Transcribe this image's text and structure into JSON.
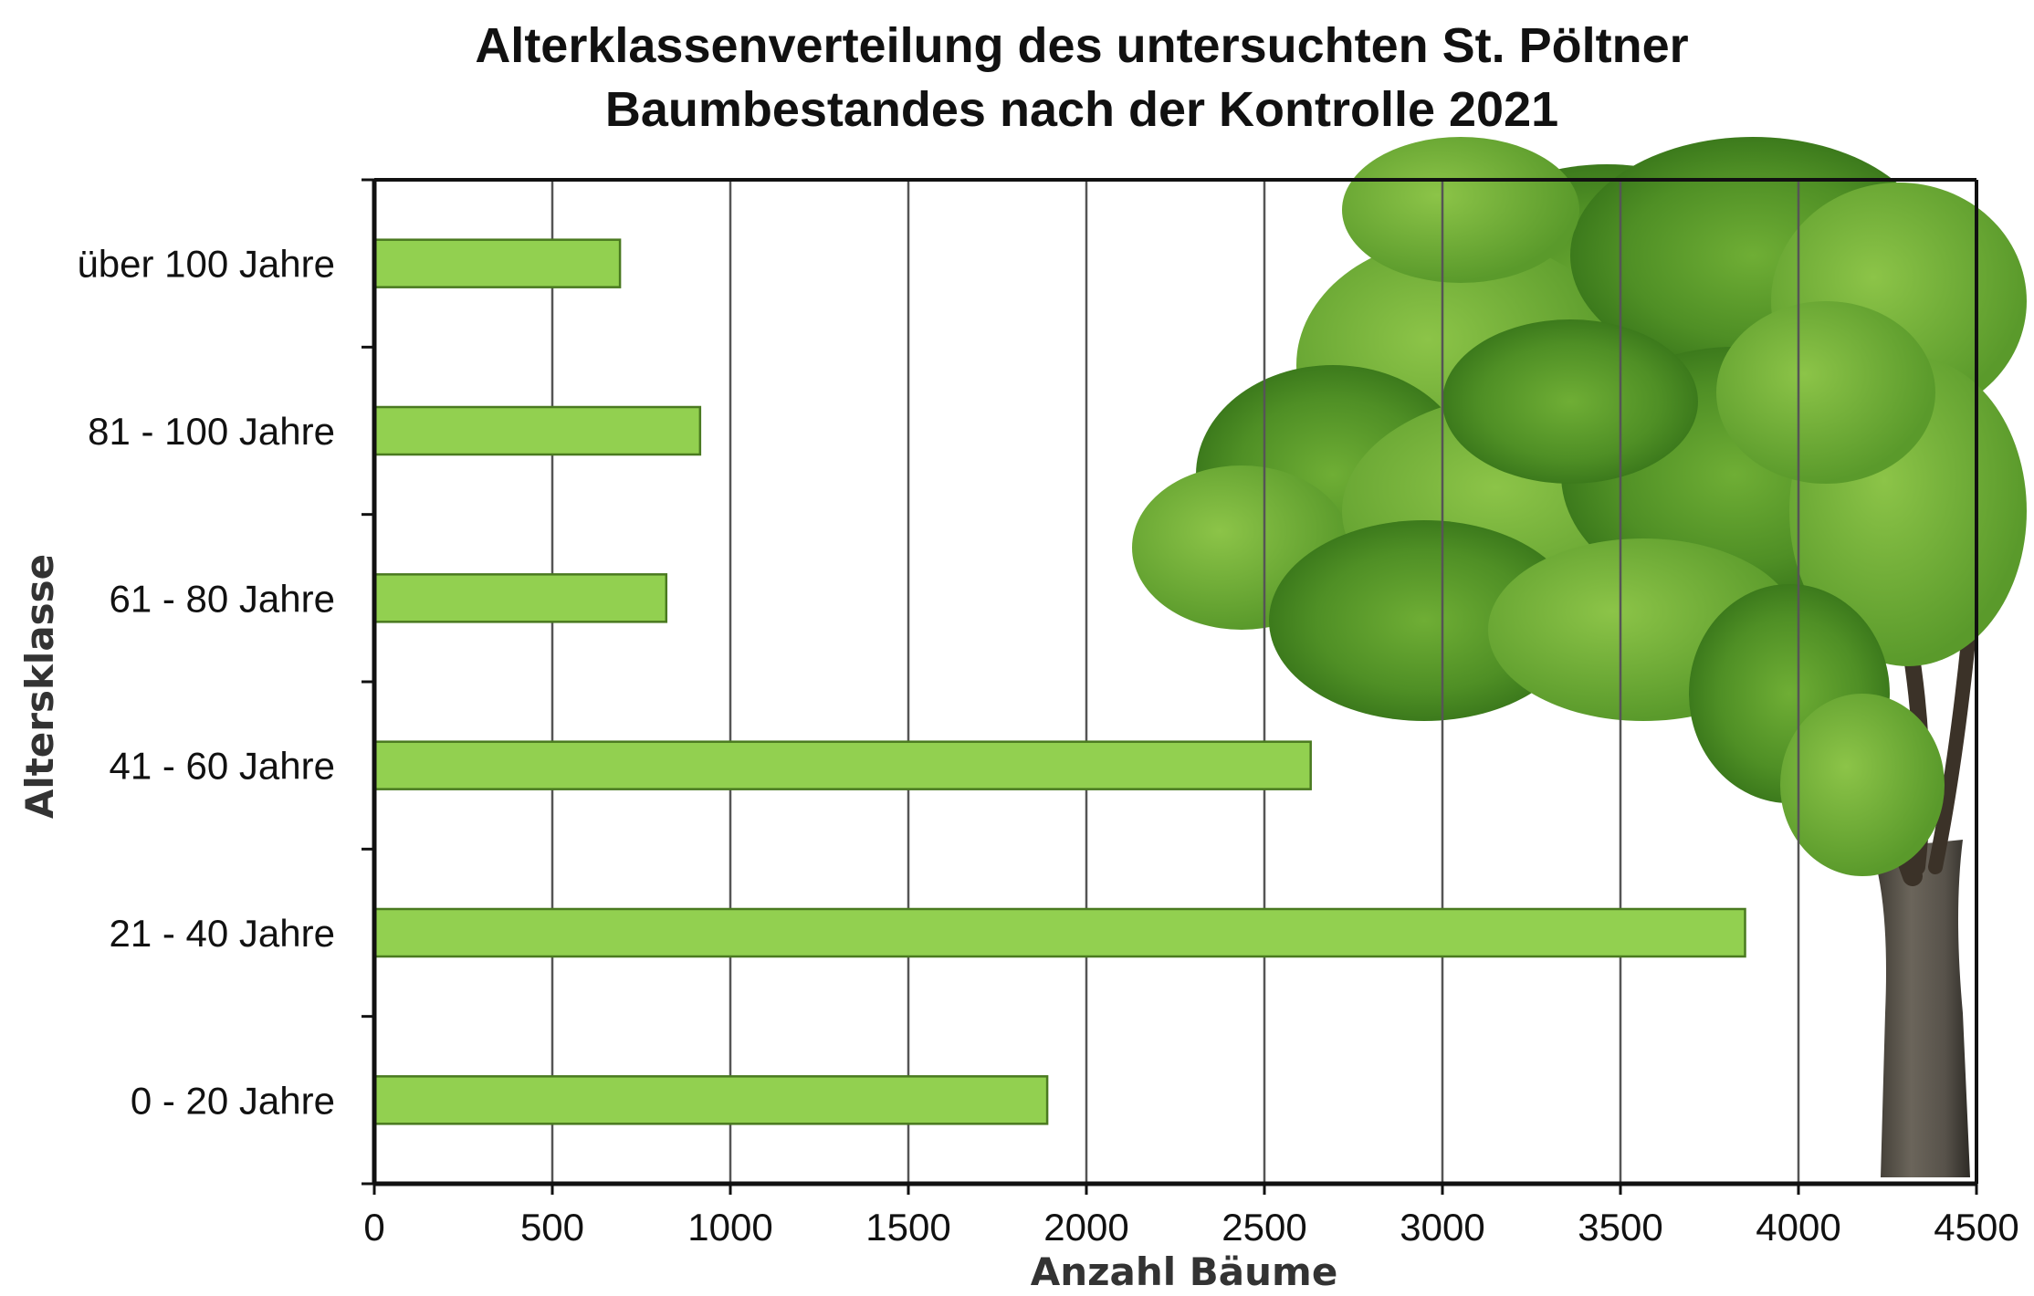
{
  "chart_data": {
    "type": "bar",
    "orientation": "horizontal",
    "title_lines": [
      "Alterklassenverteilung des untersuchten St. Pöltner",
      "Baumbestandes nach der Kontrolle 2021"
    ],
    "xlabel": "Anzahl Bäume",
    "ylabel": "Altersklasse",
    "categories": [
      "0 - 20 Jahre",
      "21 - 40 Jahre",
      "41 - 60 Jahre",
      "61 - 80 Jahre",
      "81 - 100 Jahre",
      "über 100 Jahre"
    ],
    "values": [
      1890,
      3850,
      2630,
      820,
      915,
      690
    ],
    "xlim": [
      0,
      4500
    ],
    "xticks": [
      "0",
      "500",
      "1000",
      "1500",
      "2000",
      "2500",
      "3000",
      "3500",
      "4000",
      "4500"
    ],
    "grid": "vertical",
    "bar_color": "#92d050",
    "bar_edge_color": "#4a7a20",
    "background_image": "oak-tree-photo"
  }
}
